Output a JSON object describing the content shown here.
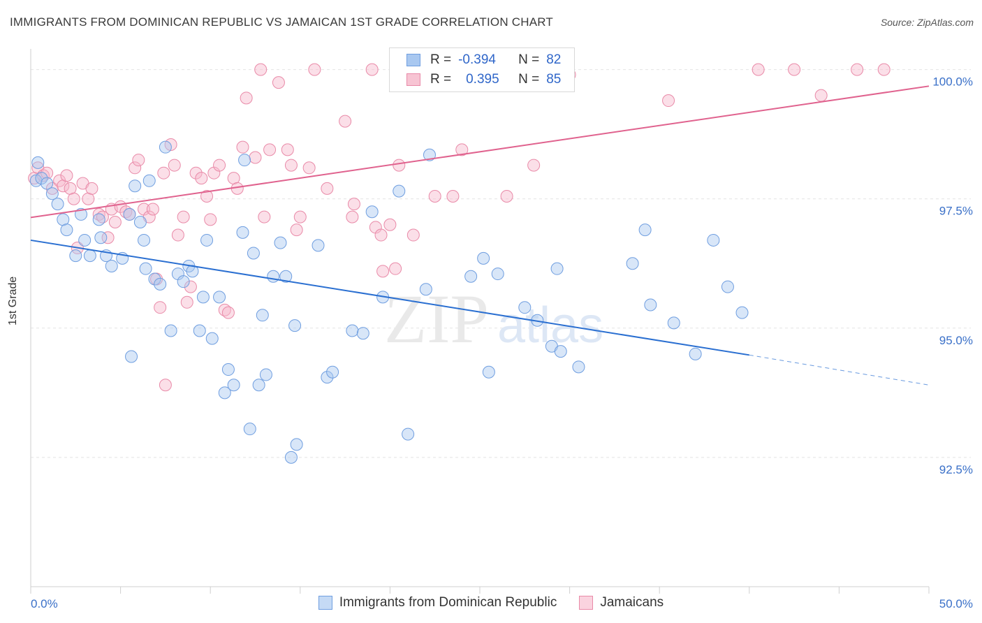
{
  "header": {
    "title": "IMMIGRANTS FROM DOMINICAN REPUBLIC VS JAMAICAN 1ST GRADE CORRELATION CHART",
    "source": "Source: ZipAtlas.com"
  },
  "watermark": {
    "zip": "ZIP",
    "atlas": "atlas"
  },
  "legend": {
    "rows": [
      {
        "r_label": "R =",
        "r_value": "-0.394",
        "n_label": "N =",
        "n_value": "82"
      },
      {
        "r_label": "R =",
        "r_value": "0.395",
        "n_label": "N =",
        "n_value": "85"
      }
    ]
  },
  "colors": {
    "blue_fill": "#a9c8f0",
    "blue_stroke": "#6f9ee0",
    "blue_line": "#2a6fd1",
    "pink_fill": "#f7b9cc",
    "pink_stroke": "#e98aa8",
    "pink_line": "#e0628e",
    "tick_label": "#3a70c8",
    "grid": "#e4e4e4"
  },
  "chart_data": {
    "type": "scatter",
    "title": "IMMIGRANTS FROM DOMINICAN REPUBLIC VS JAMAICAN 1ST GRADE CORRELATION CHART",
    "xlabel": "",
    "ylabel": "1st Grade",
    "xlim": [
      0,
      50
    ],
    "ylim": [
      90.0,
      100.4
    ],
    "x_tick_labels": [
      "0.0%",
      "50.0%"
    ],
    "y_ticks": [
      92.5,
      95.0,
      97.5,
      100.0
    ],
    "y_tick_labels": [
      "92.5%",
      "95.0%",
      "97.5%",
      "100.0%"
    ],
    "grid": true,
    "legend_position": "bottom",
    "series": [
      {
        "name": "Immigrants from Dominican Republic",
        "r": -0.394,
        "n": 82,
        "trend": {
          "x0": 0,
          "y0": 96.7,
          "x1": 40,
          "y1": 94.48,
          "dashed_to_x": 50,
          "dashed_to_y": 93.9
        },
        "points": [
          [
            0.3,
            97.85
          ],
          [
            0.4,
            98.2
          ],
          [
            0.6,
            97.9
          ],
          [
            0.9,
            97.8
          ],
          [
            1.2,
            97.6
          ],
          [
            1.5,
            97.4
          ],
          [
            1.8,
            97.1
          ],
          [
            2.0,
            96.9
          ],
          [
            2.5,
            96.4
          ],
          [
            2.8,
            97.2
          ],
          [
            3.0,
            96.7
          ],
          [
            3.3,
            96.4
          ],
          [
            3.8,
            97.1
          ],
          [
            3.9,
            96.75
          ],
          [
            4.2,
            96.4
          ],
          [
            4.5,
            96.2
          ],
          [
            5.1,
            96.35
          ],
          [
            5.5,
            97.2
          ],
          [
            5.6,
            94.45
          ],
          [
            5.8,
            97.75
          ],
          [
            6.1,
            97.05
          ],
          [
            6.3,
            96.7
          ],
          [
            6.4,
            96.15
          ],
          [
            6.6,
            97.85
          ],
          [
            6.9,
            95.95
          ],
          [
            7.2,
            95.85
          ],
          [
            7.5,
            98.5
          ],
          [
            7.8,
            94.95
          ],
          [
            8.2,
            96.05
          ],
          [
            8.5,
            95.9
          ],
          [
            8.8,
            96.2
          ],
          [
            9.0,
            96.1
          ],
          [
            9.4,
            94.95
          ],
          [
            9.6,
            95.6
          ],
          [
            9.8,
            96.7
          ],
          [
            10.1,
            94.8
          ],
          [
            10.5,
            95.6
          ],
          [
            10.8,
            93.75
          ],
          [
            11.0,
            94.2
          ],
          [
            11.3,
            93.9
          ],
          [
            11.8,
            96.85
          ],
          [
            11.9,
            98.25
          ],
          [
            12.2,
            93.05
          ],
          [
            12.4,
            96.45
          ],
          [
            12.7,
            93.9
          ],
          [
            12.9,
            95.25
          ],
          [
            13.1,
            94.1
          ],
          [
            13.5,
            96.0
          ],
          [
            13.9,
            96.65
          ],
          [
            14.2,
            96.0
          ],
          [
            14.5,
            92.5
          ],
          [
            14.7,
            95.05
          ],
          [
            14.8,
            92.75
          ],
          [
            16.0,
            96.6
          ],
          [
            16.5,
            94.05
          ],
          [
            16.8,
            94.15
          ],
          [
            17.9,
            94.95
          ],
          [
            18.5,
            94.9
          ],
          [
            19.0,
            97.25
          ],
          [
            19.6,
            95.6
          ],
          [
            20.5,
            97.65
          ],
          [
            21.0,
            92.95
          ],
          [
            22.0,
            95.75
          ],
          [
            22.2,
            98.35
          ],
          [
            24.5,
            96.0
          ],
          [
            25.2,
            96.35
          ],
          [
            25.5,
            94.15
          ],
          [
            26.0,
            96.05
          ],
          [
            27.5,
            95.4
          ],
          [
            28.2,
            95.15
          ],
          [
            29.0,
            94.65
          ],
          [
            29.3,
            96.15
          ],
          [
            29.5,
            94.55
          ],
          [
            30.5,
            94.25
          ],
          [
            33.5,
            96.25
          ],
          [
            34.2,
            96.9
          ],
          [
            34.5,
            95.45
          ],
          [
            35.8,
            95.1
          ],
          [
            37.0,
            94.5
          ],
          [
            38.0,
            96.7
          ],
          [
            38.8,
            95.8
          ],
          [
            39.6,
            95.3
          ]
        ]
      },
      {
        "name": "Jamaicans",
        "r": 0.395,
        "n": 85,
        "trend": {
          "x0": 0,
          "y0": 97.14,
          "x1": 50,
          "y1": 99.68
        },
        "points": [
          [
            0.2,
            97.9
          ],
          [
            0.4,
            98.1
          ],
          [
            0.7,
            97.95
          ],
          [
            0.9,
            98.0
          ],
          [
            1.2,
            97.7
          ],
          [
            1.6,
            97.85
          ],
          [
            1.8,
            97.75
          ],
          [
            2.0,
            97.95
          ],
          [
            2.2,
            97.7
          ],
          [
            2.4,
            97.5
          ],
          [
            2.6,
            96.55
          ],
          [
            2.9,
            97.8
          ],
          [
            3.2,
            97.5
          ],
          [
            3.4,
            97.7
          ],
          [
            3.8,
            97.2
          ],
          [
            4.0,
            97.15
          ],
          [
            4.3,
            96.75
          ],
          [
            4.5,
            97.3
          ],
          [
            4.7,
            97.05
          ],
          [
            5.0,
            97.35
          ],
          [
            5.3,
            97.25
          ],
          [
            5.5,
            97.2
          ],
          [
            5.8,
            98.1
          ],
          [
            6.0,
            98.25
          ],
          [
            6.3,
            97.3
          ],
          [
            6.6,
            97.15
          ],
          [
            6.8,
            97.3
          ],
          [
            7.0,
            95.95
          ],
          [
            7.2,
            95.4
          ],
          [
            7.4,
            98.0
          ],
          [
            7.5,
            93.9
          ],
          [
            7.8,
            98.55
          ],
          [
            8.0,
            98.15
          ],
          [
            8.2,
            96.8
          ],
          [
            8.5,
            97.15
          ],
          [
            8.7,
            95.5
          ],
          [
            8.9,
            95.8
          ],
          [
            9.2,
            98.0
          ],
          [
            9.5,
            97.9
          ],
          [
            9.8,
            97.55
          ],
          [
            10.0,
            97.1
          ],
          [
            10.2,
            98.0
          ],
          [
            10.5,
            98.15
          ],
          [
            10.8,
            95.35
          ],
          [
            11.0,
            95.3
          ],
          [
            11.3,
            97.9
          ],
          [
            11.5,
            97.7
          ],
          [
            11.8,
            98.5
          ],
          [
            12.0,
            99.45
          ],
          [
            12.5,
            98.3
          ],
          [
            13.0,
            97.15
          ],
          [
            13.3,
            98.45
          ],
          [
            13.8,
            99.75
          ],
          [
            14.3,
            98.45
          ],
          [
            14.5,
            98.15
          ],
          [
            14.8,
            96.9
          ],
          [
            15.0,
            97.15
          ],
          [
            15.5,
            98.1
          ],
          [
            15.8,
            100.0
          ],
          [
            16.5,
            97.7
          ],
          [
            17.5,
            99.0
          ],
          [
            17.9,
            97.15
          ],
          [
            18.0,
            97.4
          ],
          [
            19.0,
            100.0
          ],
          [
            19.2,
            96.95
          ],
          [
            19.5,
            96.8
          ],
          [
            19.6,
            96.1
          ],
          [
            20.0,
            97.0
          ],
          [
            20.3,
            96.15
          ],
          [
            20.5,
            98.15
          ],
          [
            21.3,
            96.8
          ],
          [
            22.5,
            97.55
          ],
          [
            23.5,
            97.55
          ],
          [
            24.0,
            98.45
          ],
          [
            26.5,
            97.55
          ],
          [
            28.0,
            98.15
          ],
          [
            12.8,
            100.0
          ],
          [
            35.5,
            99.4
          ],
          [
            40.5,
            100.0
          ],
          [
            42.5,
            100.0
          ],
          [
            44.0,
            99.5
          ],
          [
            46.0,
            100.0
          ],
          [
            27.0,
            100.0
          ],
          [
            30.0,
            99.9
          ],
          [
            47.5,
            100.0
          ]
        ]
      }
    ]
  }
}
